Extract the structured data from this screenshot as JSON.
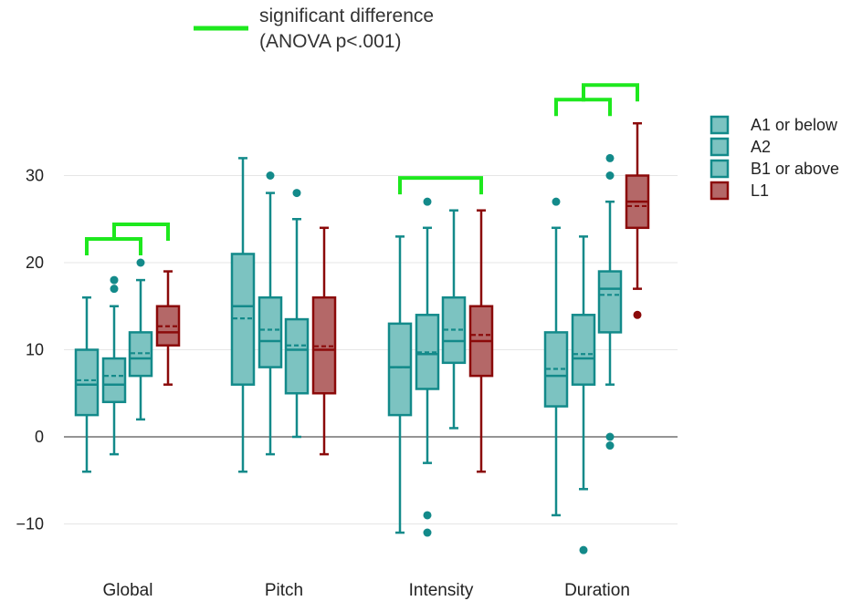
{
  "chart_data": {
    "type": "box",
    "categories": [
      "Global",
      "Pitch",
      "Intensity",
      "Duration"
    ],
    "ylim": [
      -15,
      37
    ],
    "yticks": [
      -10,
      0,
      10,
      20,
      30
    ],
    "ytick_labels": [
      "−10",
      "0",
      "10",
      "20",
      "30"
    ],
    "grid": true,
    "legend_position": "right",
    "colors": {
      "learner_stroke": "#138a8a",
      "learner_fill": "#7cc3c1",
      "l1_stroke": "#8b0a0a",
      "l1_fill": "#b46868",
      "significance": "#1ee81e"
    },
    "annotation": {
      "line1": "significant difference",
      "line2": "(ANOVA p<.001)"
    },
    "series": [
      {
        "name": "A1 or below",
        "boxes": [
          {
            "category": "Global",
            "min": -4,
            "q1": 2.5,
            "median": 6,
            "q3": 10,
            "max": 16,
            "mean": 6.5,
            "outliers": []
          },
          {
            "category": "Pitch",
            "min": -4,
            "q1": 6,
            "median": 15,
            "q3": 21,
            "max": 32,
            "mean": 13.6,
            "outliers": []
          },
          {
            "category": "Intensity",
            "min": -11,
            "q1": 2.5,
            "median": 8,
            "q3": 13,
            "max": 23,
            "mean": 8,
            "outliers": []
          },
          {
            "category": "Duration",
            "min": -9,
            "q1": 3.5,
            "median": 7,
            "q3": 12,
            "max": 24,
            "mean": 7.8,
            "outliers": [
              27
            ]
          }
        ]
      },
      {
        "name": "A2",
        "boxes": [
          {
            "category": "Global",
            "min": -2,
            "q1": 4,
            "median": 6,
            "q3": 9,
            "max": 15,
            "mean": 7,
            "outliers": [
              17,
              18
            ]
          },
          {
            "category": "Pitch",
            "min": -2,
            "q1": 8,
            "median": 11,
            "q3": 16,
            "max": 28,
            "mean": 12.3,
            "outliers": [
              30
            ]
          },
          {
            "category": "Intensity",
            "min": -3,
            "q1": 5.5,
            "median": 9.5,
            "q3": 14,
            "max": 24,
            "mean": 9.7,
            "outliers": [
              27,
              -9,
              -11
            ]
          },
          {
            "category": "Duration",
            "min": -6,
            "q1": 6,
            "median": 9,
            "q3": 14,
            "max": 23,
            "mean": 9.5,
            "outliers": [
              -13
            ]
          }
        ]
      },
      {
        "name": "B1 or above",
        "boxes": [
          {
            "category": "Global",
            "min": 2,
            "q1": 7,
            "median": 9,
            "q3": 12,
            "max": 18,
            "mean": 9.6,
            "outliers": [
              20
            ]
          },
          {
            "category": "Pitch",
            "min": 0,
            "q1": 5,
            "median": 10,
            "q3": 13.5,
            "max": 25,
            "mean": 10.5,
            "outliers": [
              28
            ]
          },
          {
            "category": "Intensity",
            "min": 1,
            "q1": 8.5,
            "median": 11,
            "q3": 16,
            "max": 26,
            "mean": 12.3,
            "outliers": []
          },
          {
            "category": "Duration",
            "min": 6,
            "q1": 12,
            "median": 17,
            "q3": 19,
            "max": 27,
            "mean": 16.3,
            "outliers": [
              0,
              -1,
              30,
              32
            ]
          }
        ]
      },
      {
        "name": "L1",
        "boxes": [
          {
            "category": "Global",
            "min": 6,
            "q1": 10.5,
            "median": 12,
            "q3": 15,
            "max": 19,
            "mean": 12.7,
            "outliers": []
          },
          {
            "category": "Pitch",
            "min": -2,
            "q1": 5,
            "median": 10,
            "q3": 16,
            "max": 24,
            "mean": 10.4,
            "outliers": []
          },
          {
            "category": "Intensity",
            "min": -4,
            "q1": 7,
            "median": 11,
            "q3": 15,
            "max": 26,
            "mean": 11.7,
            "outliers": []
          },
          {
            "category": "Duration",
            "min": 17,
            "q1": 24,
            "median": 27,
            "q3": 30,
            "max": 36,
            "mean": 26.5,
            "outliers": [
              14
            ]
          }
        ]
      }
    ],
    "significance_brackets": [
      {
        "category": "Global",
        "from_series": 0,
        "to_series": 2,
        "level": 1
      },
      {
        "category": "Global",
        "from_series": 1,
        "to_series": 3,
        "level": 2
      },
      {
        "category": "Intensity",
        "from_series": 0,
        "to_series": 3,
        "level": 1
      },
      {
        "category": "Duration",
        "from_series": 0,
        "to_series": 2,
        "level": 1
      },
      {
        "category": "Duration",
        "from_series": 1,
        "to_series": 3,
        "level": 2
      }
    ]
  }
}
